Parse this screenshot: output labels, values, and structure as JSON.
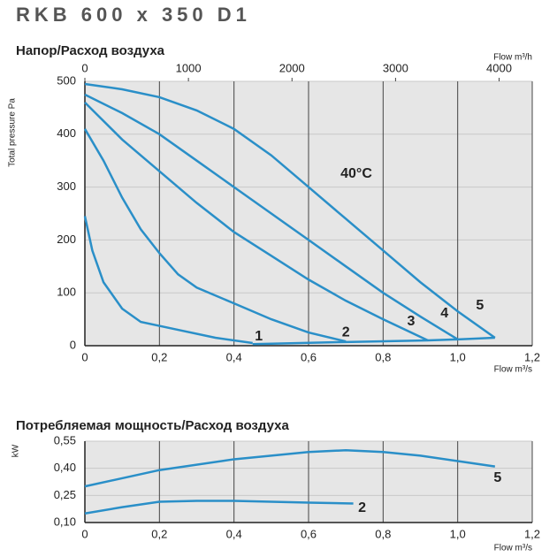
{
  "title": "RKB 600 x 350 D1",
  "chart_data": [
    {
      "type": "line",
      "title": "Напор/Расход воздуха",
      "y_label": "Total pressure Pa",
      "x_label": "Flow m³/s",
      "x2_label": "Flow m³/h",
      "annotation": "40°C",
      "xlim": [
        0,
        1.2
      ],
      "xticks": [
        0,
        {
          "value": 0.2,
          "label": "0,2"
        },
        {
          "value": 0.4,
          "label": "0,4"
        },
        {
          "value": 0.6,
          "label": "0,6"
        },
        {
          "value": 0.8,
          "label": "0,8"
        },
        {
          "value": 1,
          "label": "1,0"
        },
        {
          "value": 1.2,
          "label": "1,2"
        }
      ],
      "x2lim": [
        0,
        4320
      ],
      "x2ticks": [
        0,
        1000,
        2000,
        3000,
        4000
      ],
      "ylim": [
        0,
        500
      ],
      "yticks": [
        0,
        100,
        200,
        300,
        400,
        500
      ],
      "grid": true,
      "series": [
        {
          "name": "1",
          "color": "#2a8fc8",
          "x": [
            0,
            0.02,
            0.05,
            0.1,
            0.15,
            0.25,
            0.35,
            0.45
          ],
          "values": [
            245,
            180,
            120,
            70,
            45,
            30,
            15,
            5
          ]
        },
        {
          "name": "2",
          "color": "#2a8fc8",
          "x": [
            0,
            0.05,
            0.1,
            0.15,
            0.2,
            0.25,
            0.3,
            0.4,
            0.5,
            0.6,
            0.7
          ],
          "values": [
            410,
            350,
            280,
            220,
            175,
            135,
            110,
            80,
            50,
            25,
            8
          ]
        },
        {
          "name": "3",
          "color": "#2a8fc8",
          "x": [
            0,
            0.1,
            0.2,
            0.3,
            0.4,
            0.5,
            0.6,
            0.7,
            0.8,
            0.92
          ],
          "values": [
            460,
            390,
            330,
            270,
            215,
            170,
            125,
            85,
            50,
            10
          ]
        },
        {
          "name": "4",
          "color": "#2a8fc8",
          "x": [
            0,
            0.1,
            0.2,
            0.3,
            0.4,
            0.5,
            0.6,
            0.7,
            0.8,
            0.9,
            1.0
          ],
          "values": [
            475,
            440,
            400,
            350,
            300,
            250,
            200,
            150,
            100,
            55,
            12
          ]
        },
        {
          "name": "5",
          "color": "#2a8fc8",
          "x": [
            0,
            0.1,
            0.2,
            0.3,
            0.4,
            0.5,
            0.6,
            0.7,
            0.8,
            0.9,
            1.0,
            1.1
          ],
          "values": [
            495,
            485,
            470,
            445,
            410,
            360,
            300,
            240,
            180,
            120,
            65,
            15
          ]
        }
      ],
      "system_curve": {
        "color": "#2a8fc8",
        "x": [
          0.45,
          0.7,
          0.92,
          1.0,
          1.1
        ],
        "values": [
          3,
          7,
          10,
          12,
          15
        ]
      }
    },
    {
      "type": "line",
      "title": "Потребляемая мощность/Расход воздуха",
      "y_label": "kW",
      "x_label": "Flow m³/s",
      "xlim": [
        0,
        1.2
      ],
      "xticks": [
        0,
        {
          "value": 0.2,
          "label": "0,2"
        },
        {
          "value": 0.4,
          "label": "0,4"
        },
        {
          "value": 0.6,
          "label": "0,6"
        },
        {
          "value": 0.8,
          "label": "0,8"
        },
        {
          "value": 1,
          "label": "1,0"
        },
        {
          "value": 1.2,
          "label": "1,2"
        }
      ],
      "ylim": [
        0.1,
        0.55
      ],
      "yticks": [
        {
          "value": 0.1,
          "label": "0,10"
        },
        {
          "value": 0.25,
          "label": "0,25"
        },
        {
          "value": 0.4,
          "label": "0,40"
        },
        {
          "value": 0.55,
          "label": "0,55"
        }
      ],
      "grid": true,
      "series": [
        {
          "name": "5",
          "color": "#2a8fc8",
          "x": [
            0,
            0.2,
            0.4,
            0.6,
            0.7,
            0.8,
            0.9,
            1.0,
            1.1
          ],
          "values": [
            0.3,
            0.39,
            0.45,
            0.49,
            0.5,
            0.49,
            0.47,
            0.44,
            0.41
          ]
        },
        {
          "name": "2",
          "color": "#2a8fc8",
          "x": [
            0,
            0.1,
            0.2,
            0.3,
            0.4,
            0.5,
            0.6,
            0.72
          ],
          "values": [
            0.15,
            0.185,
            0.215,
            0.22,
            0.22,
            0.215,
            0.21,
            0.205
          ]
        }
      ]
    }
  ]
}
